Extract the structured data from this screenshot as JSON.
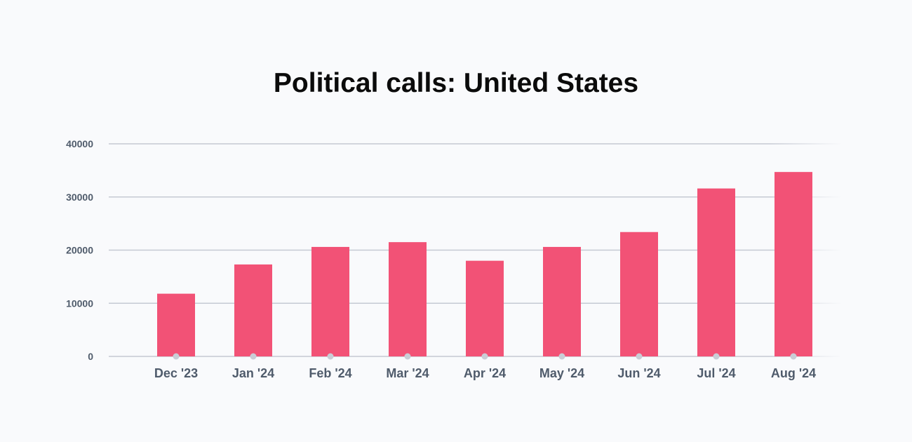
{
  "chart_data": {
    "type": "bar",
    "title": "Political calls: United States",
    "categories": [
      "Dec '23",
      "Jan '24",
      "Feb '24",
      "Mar '24",
      "Apr '24",
      "May '24",
      "Jun '24",
      "Jul '24",
      "Aug '24"
    ],
    "values": [
      11800,
      17300,
      20600,
      21500,
      18000,
      20600,
      23400,
      31600,
      34700
    ],
    "yticks": [
      "0",
      "10000",
      "20000",
      "30000",
      "40000"
    ],
    "ylim": [
      0,
      40000
    ],
    "xlabel": "",
    "ylabel": "",
    "grid": true,
    "legend": "none",
    "colors": {
      "bar": "#f25276",
      "grid": "#c5c9d3",
      "axis_text": "#4f5b6b",
      "marker": "#c9ced6",
      "title": "#0b0b0b"
    }
  }
}
